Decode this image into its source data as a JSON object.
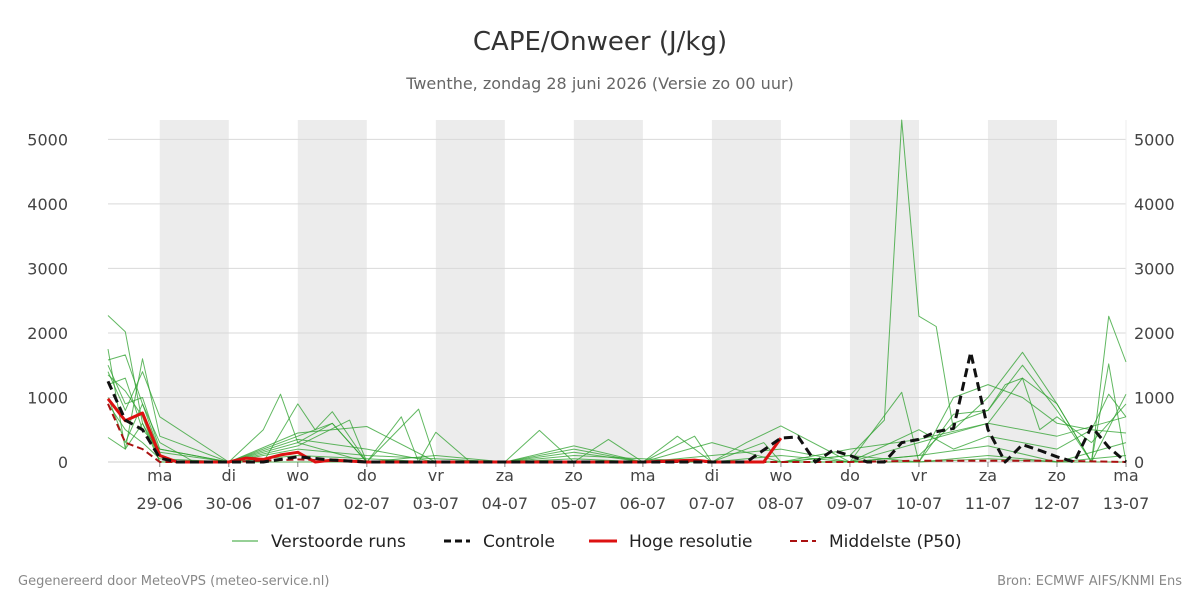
{
  "chart_data": {
    "type": "line",
    "title": "CAPE/Onweer (J/kg)",
    "subtitle": "Twenthe, zondag 28 juni 2026 (Versie zo 00 uur)",
    "ylim": [
      0,
      5300
    ],
    "yticks": [
      0,
      1000,
      2000,
      3000,
      4000,
      5000
    ],
    "xlim": [
      -0.75,
      14.0
    ],
    "xtick_positions": [
      0,
      1,
      2,
      3,
      4,
      5,
      6,
      7,
      8,
      9,
      10,
      11,
      12,
      13,
      14
    ],
    "xtick_days": [
      "ma",
      "di",
      "wo",
      "do",
      "vr",
      "za",
      "zo",
      "ma",
      "di",
      "wo",
      "do",
      "vr",
      "za",
      "zo",
      "ma"
    ],
    "xtick_dates": [
      "29-06",
      "30-06",
      "01-07",
      "02-07",
      "03-07",
      "04-07",
      "05-07",
      "06-07",
      "07-07",
      "08-07",
      "09-07",
      "10-07",
      "11-07",
      "12-07",
      "13-07"
    ],
    "shaded_days": [
      [
        0,
        1
      ],
      [
        2,
        3
      ],
      [
        4,
        5
      ],
      [
        6,
        7
      ],
      [
        8,
        9
      ],
      [
        10,
        11
      ],
      [
        12,
        13
      ]
    ],
    "grid": true,
    "legend_position": "bottom",
    "legend": [
      "Verstoorde runs",
      "Controle",
      "Hoge resolutie",
      "Middelste (P50)"
    ],
    "colors": {
      "ensemble": "#2ca02c",
      "control": "#111111",
      "hires": "#dd1111",
      "median": "#aa1111",
      "shade": "#ececec",
      "grid": "#d9d9d9"
    },
    "controle": {
      "x": [
        -0.75,
        -0.5,
        -0.25,
        0,
        0.25,
        0.5,
        1,
        1.5,
        2,
        2.5,
        3,
        3.5,
        4,
        4.5,
        5,
        5.5,
        6,
        6.5,
        7,
        7.5,
        8,
        8.5,
        9,
        9.25,
        9.5,
        9.75,
        10,
        10.25,
        10.5,
        10.75,
        11,
        11.25,
        11.5,
        11.75,
        12,
        12.25,
        12.5,
        12.75,
        13,
        13.25,
        13.5,
        13.75,
        14
      ],
      "values": [
        1250,
        650,
        500,
        60,
        0,
        0,
        0,
        0,
        80,
        30,
        0,
        0,
        0,
        0,
        0,
        0,
        0,
        0,
        0,
        0,
        0,
        0,
        370,
        390,
        0,
        180,
        100,
        0,
        0,
        300,
        350,
        470,
        520,
        1700,
        500,
        0,
        270,
        180,
        80,
        0,
        550,
        230,
        0
      ]
    },
    "hoge_resolutie": {
      "x": [
        -0.75,
        -0.5,
        -0.25,
        0,
        0.25,
        0.5,
        1,
        1.25,
        1.5,
        1.75,
        2,
        2.25,
        2.5,
        3,
        4,
        5,
        6,
        7,
        7.75,
        8,
        8.5,
        8.75,
        9
      ],
      "values": [
        980,
        640,
        760,
        100,
        0,
        0,
        0,
        60,
        40,
        110,
        150,
        0,
        30,
        0,
        0,
        0,
        0,
        0,
        30,
        0,
        0,
        0,
        370
      ]
    },
    "middelste_p50": {
      "x": [
        -0.75,
        -0.5,
        -0.25,
        0,
        0.25,
        0.5,
        1,
        2,
        3,
        4,
        5,
        6,
        7,
        8,
        9,
        10,
        11,
        12,
        13,
        14
      ],
      "values": [
        900,
        300,
        200,
        0,
        0,
        0,
        0,
        40,
        0,
        0,
        0,
        0,
        0,
        0,
        0,
        0,
        20,
        20,
        20,
        0
      ]
    },
    "verstoorde_runs": [
      {
        "x": [
          -0.75,
          -0.5,
          -0.25,
          0,
          0.25,
          1,
          2,
          3,
          4,
          5,
          6,
          7,
          8,
          9,
          10,
          10.5,
          10.75,
          11,
          11.25,
          11.5,
          12,
          12.5,
          13,
          13.5,
          13.75,
          14
        ],
        "values": [
          2270,
          2020,
          600,
          100,
          0,
          0,
          0,
          0,
          0,
          0,
          0,
          0,
          0,
          0,
          100,
          650,
          5300,
          2260,
          2100,
          500,
          1000,
          1700,
          900,
          0,
          2260,
          1550
        ]
      },
      {
        "x": [
          -0.75,
          -0.5,
          -0.25,
          0,
          1,
          1.5,
          1.75,
          2,
          2.5,
          3,
          4,
          5,
          6,
          7,
          8,
          9,
          10,
          11,
          11.5,
          12,
          12.25,
          12.5,
          12.75,
          13,
          13.5,
          14
        ],
        "values": [
          1750,
          200,
          1600,
          400,
          0,
          500,
          1050,
          300,
          600,
          0,
          0,
          0,
          0,
          0,
          0,
          0,
          0,
          100,
          600,
          800,
          1200,
          1300,
          500,
          700,
          300,
          900
        ]
      },
      {
        "x": [
          -0.75,
          -0.5,
          -0.25,
          0,
          0.5,
          1.5,
          2,
          2.25,
          2.5,
          3,
          3.5,
          3.75,
          4,
          4.5,
          5,
          5.5,
          6,
          7,
          7.5,
          8,
          8.5,
          9,
          10,
          10.75,
          11,
          11.5,
          12,
          12.5,
          13,
          13.5,
          14
        ],
        "values": [
          1580,
          1660,
          900,
          300,
          0,
          0,
          900,
          500,
          780,
          0,
          700,
          0,
          460,
          0,
          0,
          490,
          0,
          0,
          400,
          0,
          300,
          560,
          0,
          1080,
          0,
          740,
          800,
          1500,
          800,
          0,
          1050
        ]
      },
      {
        "x": [
          -0.75,
          -0.5,
          -0.25,
          0,
          1,
          2,
          2.5,
          3,
          3.75,
          4,
          5,
          6,
          6.5,
          7,
          8,
          9,
          10,
          11,
          11.5,
          12,
          12.5,
          13,
          13.5,
          13.75,
          14
        ],
        "values": [
          1400,
          800,
          1400,
          700,
          0,
          400,
          600,
          0,
          820,
          0,
          0,
          0,
          350,
          0,
          0,
          0,
          0,
          0,
          1000,
          1200,
          1000,
          600,
          500,
          1050,
          700
        ]
      },
      {
        "x": [
          -0.75,
          -0.5,
          -0.25,
          0,
          1,
          2,
          2.75,
          3,
          4,
          5,
          6,
          7,
          7.75,
          8,
          8.75,
          9,
          10,
          11,
          12,
          12.5,
          13,
          13.5,
          13.75,
          14
        ],
        "values": [
          1200,
          1300,
          500,
          200,
          0,
          250,
          650,
          0,
          0,
          0,
          0,
          0,
          400,
          0,
          300,
          0,
          200,
          350,
          600,
          1300,
          900,
          0,
          1520,
          0
        ]
      },
      {
        "x": [
          -0.75,
          -0.5,
          -0.25,
          0,
          1,
          2,
          3,
          4,
          5,
          6,
          7,
          8,
          9,
          10,
          11,
          11.5,
          12,
          12.5,
          13,
          13.5,
          14
        ],
        "values": [
          1000,
          300,
          900,
          150,
          0,
          350,
          200,
          0,
          0,
          200,
          0,
          0,
          0,
          0,
          500,
          200,
          400,
          300,
          200,
          500,
          450
        ]
      },
      {
        "x": [
          -0.75,
          -0.5,
          -0.25,
          0,
          1,
          2,
          3,
          4,
          5,
          6,
          7,
          8,
          9,
          10,
          11,
          12,
          13,
          14
        ],
        "values": [
          900,
          500,
          300,
          50,
          0,
          200,
          100,
          50,
          0,
          150,
          0,
          100,
          200,
          0,
          100,
          250,
          0,
          300
        ]
      },
      {
        "x": [
          -0.75,
          -0.5,
          -0.25,
          0,
          1,
          2,
          3,
          4,
          5,
          6,
          7,
          8,
          9,
          10,
          11,
          12,
          13,
          14
        ],
        "values": [
          1350,
          1100,
          700,
          0,
          0,
          300,
          0,
          100,
          0,
          100,
          50,
          0,
          100,
          0,
          0,
          100,
          0,
          100
        ]
      },
      {
        "x": [
          -0.75,
          -0.5,
          -0.25,
          0,
          1,
          2,
          3,
          4,
          5,
          6,
          7,
          8,
          9,
          10,
          11,
          12,
          13,
          14
        ],
        "values": [
          380,
          200,
          600,
          0,
          0,
          100,
          50,
          0,
          0,
          50,
          0,
          0,
          0,
          100,
          0,
          50,
          0,
          0
        ]
      },
      {
        "x": [
          -0.75,
          -0.5,
          -0.25,
          0,
          1,
          2,
          3,
          4,
          5,
          6,
          7,
          8,
          9,
          10,
          11,
          12,
          13,
          14
        ],
        "values": [
          1500,
          900,
          1000,
          200,
          0,
          450,
          550,
          0,
          0,
          250,
          0,
          300,
          0,
          0,
          300,
          600,
          400,
          700
        ]
      }
    ]
  },
  "footer": {
    "left": "Gegenereerd door MeteoVPS (meteo-service.nl)",
    "right": "Bron: ECMWF AIFS/KNMI Ens"
  }
}
